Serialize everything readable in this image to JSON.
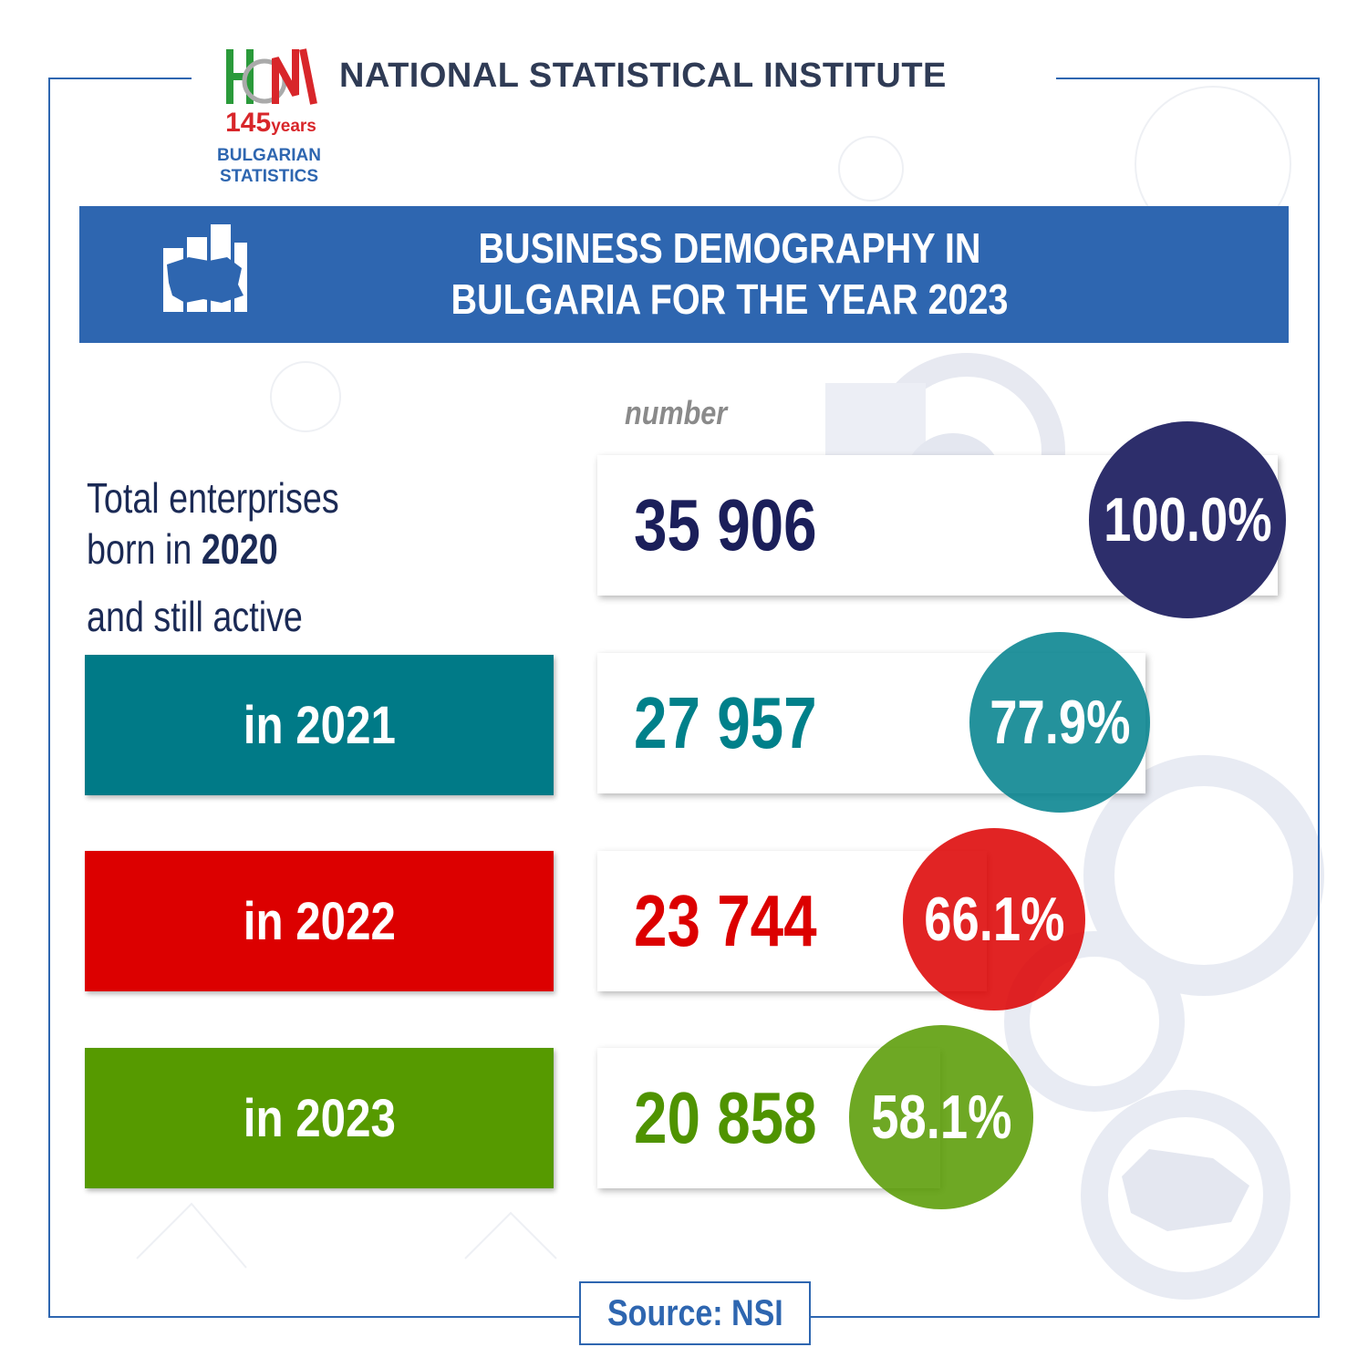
{
  "header": {
    "institute": "NATIONAL STATISTICAL INSTITUTE",
    "logo_number": "145",
    "logo_years": "years",
    "logo_line2": "BULGARIAN",
    "logo_line3": "STATISTICS"
  },
  "banner": {
    "title_line1": "BUSINESS DEMOGRAPHY IN",
    "title_line2": "BULGARIA FOR THE YEAR 2023"
  },
  "unit_label": "number",
  "total_label": {
    "line1": "Total enterprises",
    "line2_prefix": "born in ",
    "line2_year": "2020",
    "line3": "and still active"
  },
  "source": "Source: NSI",
  "colors": {
    "navy": "#2d2e6b",
    "teal": "#007a87",
    "red": "#dc0000",
    "green": "#569a00",
    "blue": "#2e66b0"
  },
  "chart_data": {
    "type": "bar",
    "title": "BUSINESS DEMOGRAPHY IN BULGARIA FOR THE YEAR 2023",
    "unit": "number",
    "categories": [
      "Total enterprises born in 2020",
      "in 2021",
      "in 2022",
      "in 2023"
    ],
    "values": [
      35906,
      27957,
      23744,
      20858
    ],
    "value_labels": [
      "35 906",
      "27 957",
      "23 744",
      "20 858"
    ],
    "percent": [
      100.0,
      77.9,
      66.1,
      58.1
    ],
    "percent_labels": [
      "100.0%",
      "77.9%",
      "66.1%",
      "58.1%"
    ],
    "series_colors": [
      "#2d2e6b",
      "#007a87",
      "#dc0000",
      "#569a00"
    ]
  },
  "rows": [
    {
      "label": "",
      "value": "35 906",
      "percent": "100.0%"
    },
    {
      "label": "in 2021",
      "value": "27 957",
      "percent": "77.9%"
    },
    {
      "label": "in 2022",
      "value": "23 744",
      "percent": "66.1%"
    },
    {
      "label": "in 2023",
      "value": "20 858",
      "percent": "58.1%"
    }
  ]
}
